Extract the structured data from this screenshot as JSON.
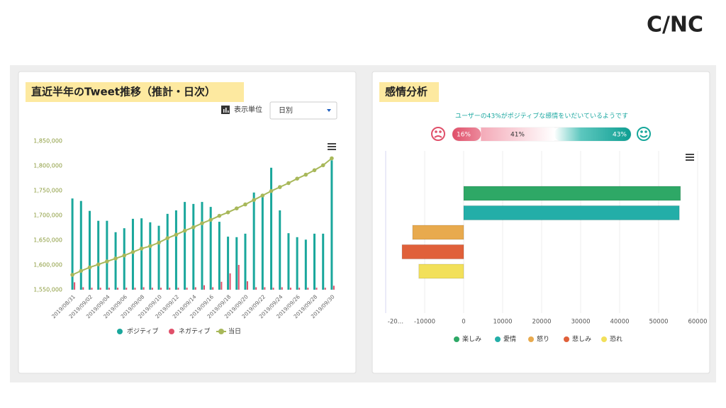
{
  "logo": "C/NC",
  "controls": {
    "unit_label": "表示単位",
    "unit_select": "日別"
  },
  "gauge": {
    "headline": "ユーザーの43%がポジティブな感情をいだいているようです",
    "values": [
      16,
      41,
      43
    ],
    "value_labels": [
      "16%",
      "41%",
      "43%"
    ],
    "colors": [
      "#e0506a",
      "#f7c9d1",
      "#17a79b"
    ]
  },
  "chart_data": [
    {
      "type": "bar",
      "title": "直近半年のTweet推移（推計・日次）",
      "categories": [
        "2019/08/31",
        null,
        "2019/09/02",
        null,
        "2019/09/04",
        null,
        "2019/09/06",
        null,
        "2019/09/08",
        null,
        "2019/09/10",
        null,
        "2019/09/12",
        null,
        "2019/09/14",
        null,
        "2019/09/16",
        null,
        "2019/09/18",
        null,
        "2019/09/20",
        null,
        "2019/09/22",
        null,
        "2019/09/24",
        null,
        "2019/09/26",
        null,
        "2019/09/28",
        null,
        "2019/09/30"
      ],
      "series": [
        {
          "name": "ポジティブ",
          "color": "#1aa79c",
          "values": [
            1734000,
            1729000,
            1709000,
            1689000,
            1689000,
            1666000,
            1674000,
            1693000,
            1694000,
            1686000,
            1679000,
            1703000,
            1710000,
            1727000,
            1723000,
            1727000,
            1717000,
            1687000,
            1657000,
            1656000,
            1663000,
            1746000,
            1743000,
            1796000,
            1710000,
            1664000,
            1656000,
            1651000,
            1663000,
            1663000,
            1811000
          ]
        },
        {
          "name": "ネガティブ",
          "color": "#e0506a",
          "values": [
            1565000,
            1555000,
            1554000,
            1554000,
            1554000,
            1554000,
            1554000,
            1554000,
            1555000,
            1554000,
            1554000,
            1554000,
            1554000,
            1554000,
            1555000,
            1559000,
            1555000,
            1566000,
            1583000,
            1600000,
            1567000,
            1555000,
            1555000,
            1554000,
            1555000,
            1554000,
            1554000,
            1554000,
            1554000,
            1554000,
            1558000
          ]
        },
        {
          "name": "当日",
          "type": "line",
          "color": "#a8b85a",
          "values": [
            1580000,
            1588000,
            1595000,
            1601000,
            1607000,
            1613000,
            1619000,
            1626000,
            1633000,
            1638000,
            1645000,
            1654000,
            1661000,
            1669000,
            1676000,
            1684000,
            1691000,
            1699000,
            1706000,
            1714000,
            1722000,
            1731000,
            1740000,
            1749000,
            1757000,
            1765000,
            1774000,
            1782000,
            1791000,
            1801000,
            1815000
          ]
        }
      ],
      "ylim": [
        1550000,
        1850000
      ],
      "yticks": [
        {
          "value": 1550000,
          "label": "1,550,000"
        },
        {
          "value": 1600000,
          "label": "1,600,000"
        },
        {
          "value": 1650000,
          "label": "1,650,000"
        },
        {
          "value": 1700000,
          "label": "1,700,000"
        },
        {
          "value": 1750000,
          "label": "1,750,000"
        },
        {
          "value": 1800000,
          "label": "1,800,000"
        },
        {
          "value": 1850000,
          "label": "1,850,000"
        }
      ],
      "grid": false
    },
    {
      "type": "barh",
      "title": "感情分析",
      "series": [
        {
          "name": "楽しみ",
          "color": "#2ea866",
          "values": [
            55600
          ]
        },
        {
          "name": "愛情",
          "color": "#23aea8",
          "values": [
            55300
          ]
        },
        {
          "name": "怒り",
          "color": "#e8aa4e",
          "values": [
            -13100
          ]
        },
        {
          "name": "悲しみ",
          "color": "#e0603a",
          "values": [
            -15800
          ]
        },
        {
          "name": "恐れ",
          "color": "#f2e05a",
          "values": [
            -11500
          ]
        }
      ],
      "xlim": [
        -20000,
        60000
      ],
      "xticks": [
        {
          "value": -20000,
          "label": "-20…"
        },
        -10000,
        0,
        10000,
        20000,
        30000,
        40000,
        50000,
        60000
      ],
      "grid": true
    }
  ]
}
